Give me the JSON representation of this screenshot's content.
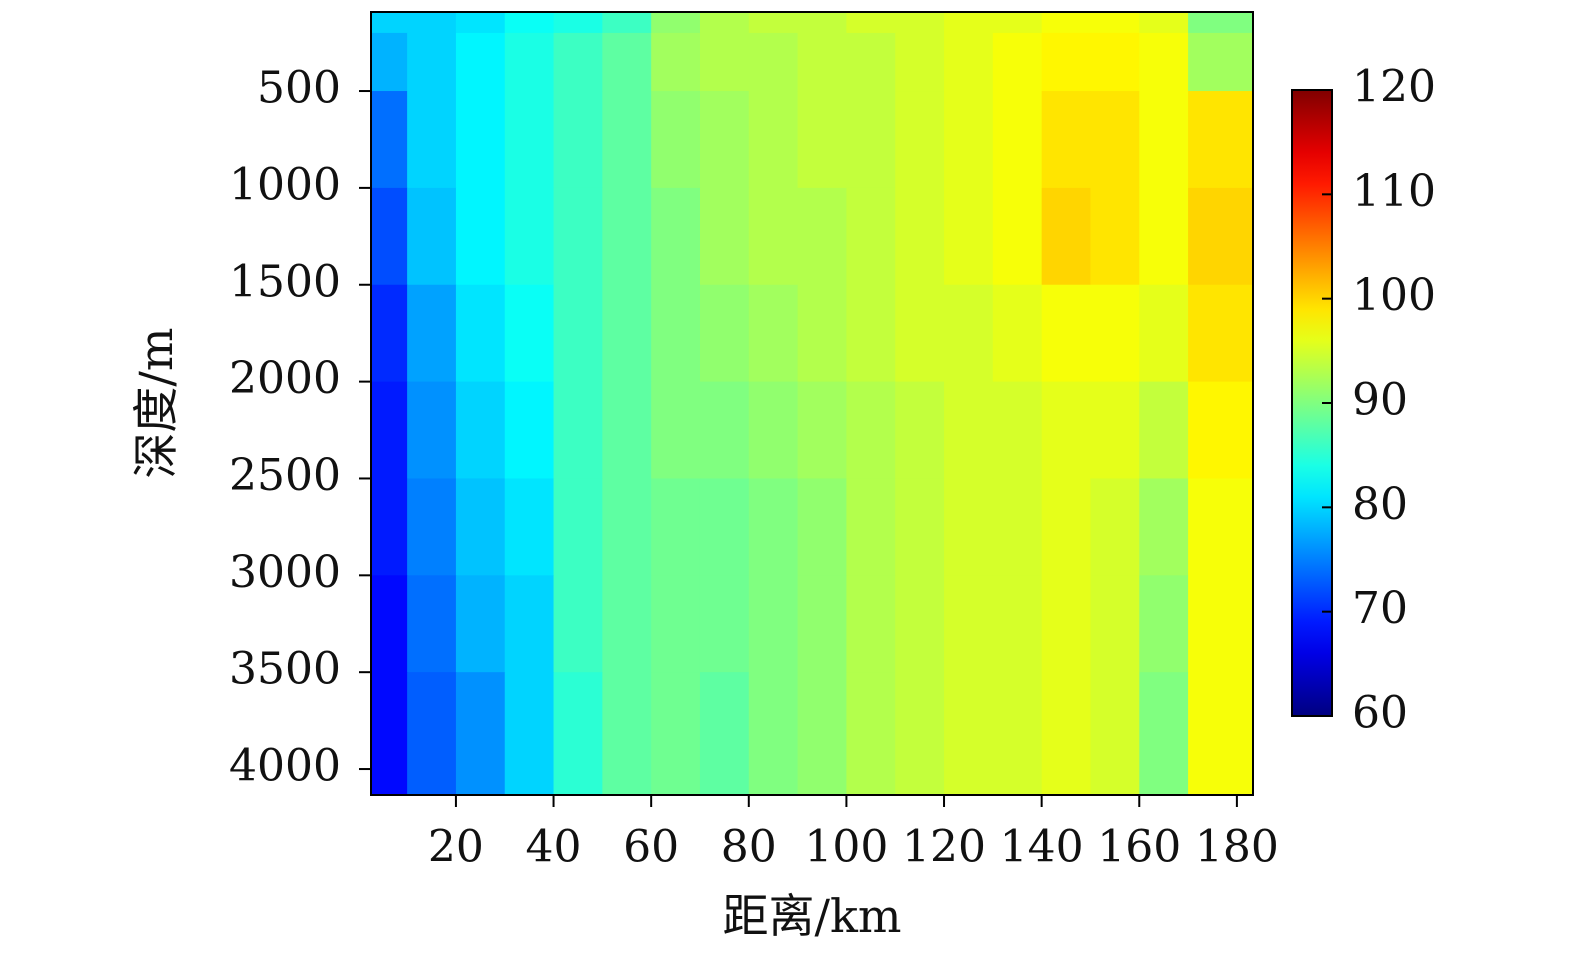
{
  "chart_data": {
    "type": "heatmap",
    "x_label": "距离/km",
    "y_label": "深度/m",
    "x_bins": [
      2.6,
      10,
      20,
      30,
      40,
      50,
      60,
      70,
      80,
      90,
      100,
      110,
      120,
      130,
      140,
      150,
      160,
      170,
      183.3
    ],
    "y_bins": [
      92,
      200,
      500,
      1000,
      1500,
      2000,
      2500,
      3000,
      3500,
      4134
    ],
    "z": [
      [
        80,
        80,
        81,
        83,
        84,
        86,
        91,
        93,
        94,
        94,
        95,
        95,
        96,
        96,
        97,
        97,
        96,
        90
      ],
      [
        78,
        80,
        82,
        84,
        86,
        88,
        92,
        93,
        93,
        94,
        94,
        95,
        96,
        97,
        98,
        98,
        97,
        92
      ],
      [
        74,
        80,
        82,
        84,
        86,
        88,
        91,
        92,
        93,
        94,
        94,
        95,
        96,
        97,
        99,
        99,
        97,
        99
      ],
      [
        72,
        79,
        82,
        84,
        86,
        88,
        90,
        92,
        93,
        93,
        94,
        95,
        96,
        97,
        100,
        99,
        97,
        100
      ],
      [
        70,
        77,
        81,
        83,
        86,
        88,
        90,
        91,
        92,
        93,
        94,
        95,
        95,
        96,
        97,
        97,
        96,
        99
      ],
      [
        69,
        76,
        80,
        82,
        86,
        88,
        90,
        90,
        91,
        92,
        93,
        94,
        95,
        95,
        96,
        96,
        94,
        98
      ],
      [
        69,
        75,
        79,
        81,
        86,
        88,
        89,
        89,
        90,
        91,
        93,
        94,
        95,
        95,
        96,
        95,
        92,
        97
      ],
      [
        68,
        74,
        78,
        80,
        86,
        88,
        89,
        89,
        90,
        91,
        93,
        94,
        95,
        95,
        96,
        95,
        91,
        97
      ],
      [
        68,
        73,
        76,
        80,
        85,
        88,
        89,
        88,
        90,
        91,
        93,
        94,
        95,
        95,
        96,
        95,
        90,
        97
      ]
    ],
    "xlim": [
      2.6,
      183.3
    ],
    "xticks": [
      20,
      40,
      60,
      80,
      100,
      120,
      140,
      160,
      180
    ],
    "ylim": [
      4134,
      92
    ],
    "yticks": [
      500,
      1000,
      1500,
      2000,
      2500,
      3000,
      3500,
      4000
    ],
    "colormap": "jet",
    "colorbar": {
      "lim": [
        60,
        120
      ],
      "ticks": [
        60,
        70,
        80,
        90,
        100,
        110,
        120
      ]
    }
  }
}
